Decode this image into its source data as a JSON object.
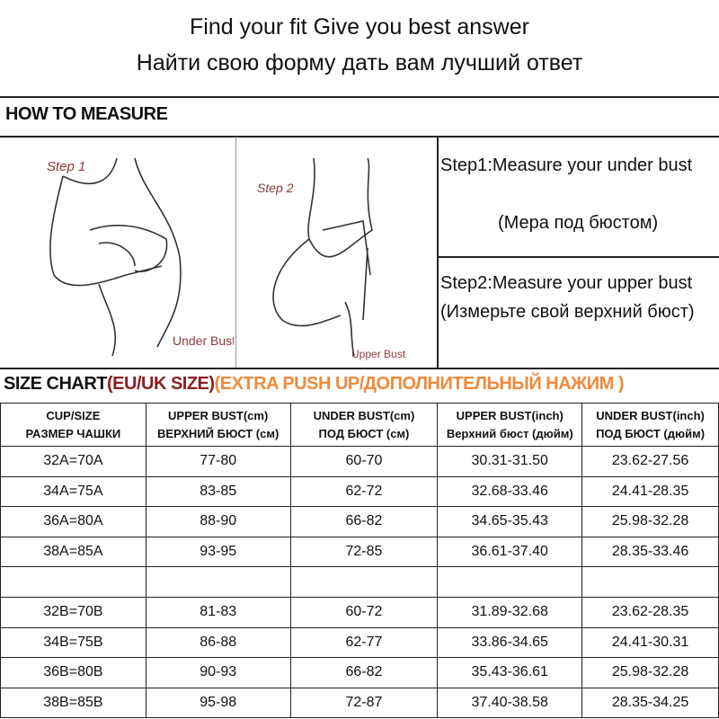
{
  "header": {
    "line1": "Find your fit Give you best answer",
    "line2": "Найти свою форму дать вам лучший ответ"
  },
  "how_to_measure": {
    "title": "HOW TO MEASURE",
    "step1_fig": {
      "label": "Step 1",
      "caption": "Under Bust"
    },
    "step2_fig": {
      "label": "Step 2",
      "caption": "Upper Bust"
    },
    "step1_text": "Step1:Measure your under bust",
    "step1_ru": "(Мера под бюстом)",
    "step2_text": "Step2:Measure your upper bust (Измерьте свой верхний бюст)"
  },
  "size_chart": {
    "title": "SIZE CHART",
    "region": "(EU/UK SIZE)",
    "note": "(EXTRA PUSH UP/ДОПОЛНИТЕЛЬНЫЙ НАЖИМ )",
    "colors": {
      "region": "#8b1f1f",
      "note": "#ee8a3c"
    },
    "columns": [
      [
        "CUP/SIZE",
        "РАЗМЕР ЧАШКИ"
      ],
      [
        "UPPER BUST(cm)",
        "ВЕРХНИЙ БЮСТ (см)"
      ],
      [
        "UNDER BUST(cm)",
        "ПОД БЮСТ (см)"
      ],
      [
        "UPPER BUST(inch)",
        "Верхний бюст (дюйм)"
      ],
      [
        "UNDER BUST(inch)",
        "ПОД БЮСТ (дюйм)"
      ]
    ],
    "rows": [
      [
        "32A=70A",
        "77-80",
        "60-70",
        "30.31-31.50",
        "23.62-27.56"
      ],
      [
        "34A=75A",
        "83-85",
        "62-72",
        "32.68-33.46",
        "24.41-28.35"
      ],
      [
        "36A=80A",
        "88-90",
        "66-82",
        "34.65-35.43",
        "25.98-32.28"
      ],
      [
        "38A=85A",
        "93-95",
        "72-85",
        "36.61-37.40",
        "28.35-33.46"
      ],
      [
        "",
        "",
        "",
        "",
        ""
      ],
      [
        "32B=70B",
        "81-83",
        "60-72",
        "31.89-32.68",
        "23.62-28.35"
      ],
      [
        "34B=75B",
        "86-88",
        "62-77",
        "33.86-34.65",
        "24.41-30.31"
      ],
      [
        "36B=80B",
        "90-93",
        "66-82",
        "35.43-36.61",
        "25.98-32.28"
      ],
      [
        "38B=85B",
        "95-98",
        "72-87",
        "37.40-38.58",
        "28.35-34.25"
      ]
    ]
  }
}
